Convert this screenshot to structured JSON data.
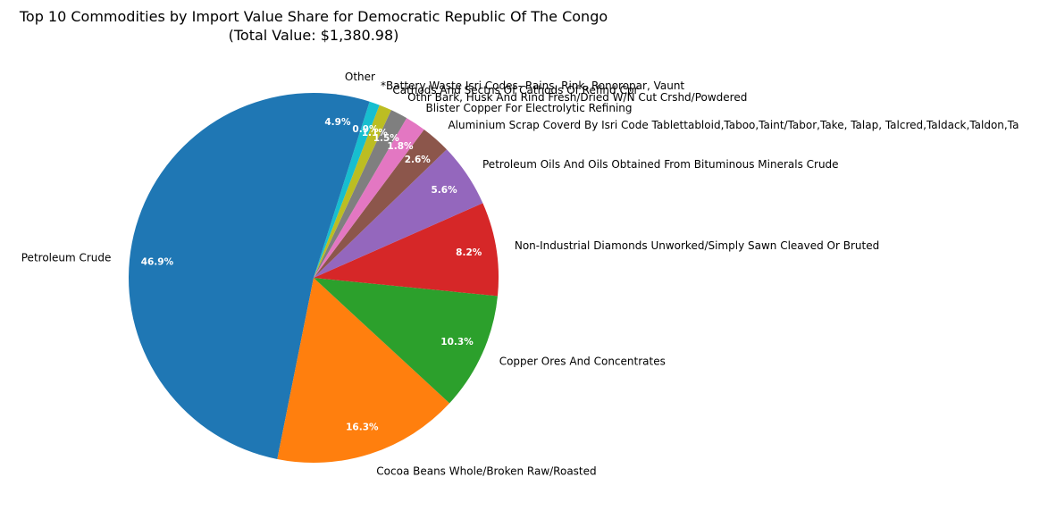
{
  "chart_data": {
    "type": "pie",
    "title": "Top 10 Commodities by Import Value Share for Democratic Republic Of The Congo",
    "subtitle": "(Total Value: $1,380.98)",
    "start_angle_deg": 90,
    "direction": "counterclockwise",
    "legend": "none",
    "slices": [
      {
        "label": "Petroleum Crude",
        "pct": 46.9,
        "pct_label": "46.9%",
        "color": "#1f77b4"
      },
      {
        "label": "Cocoa Beans Whole/Broken Raw/Roasted",
        "pct": 16.3,
        "pct_label": "16.3%",
        "color": "#ff7f0e"
      },
      {
        "label": "Copper Ores And Concentrates",
        "pct": 10.3,
        "pct_label": "10.3%",
        "color": "#2ca02c"
      },
      {
        "label": "Non-Industrial Diamonds Unworked/Simply Sawn Cleaved Or Bruted",
        "pct": 8.2,
        "pct_label": "8.2%",
        "color": "#d62728"
      },
      {
        "label": "Petroleum Oils And Oils Obtained From Bituminous Minerals Crude",
        "pct": 5.6,
        "pct_label": "5.6%",
        "color": "#9467bd"
      },
      {
        "label": "Aluminium Scrap Coverd By Isri Code Tablettabloid,Taboo,Taint/Tabor,Take, Talap, Talcred,Taldack,Taldon,Ta",
        "pct": 2.6,
        "pct_label": "2.6%",
        "color": "#8c564b"
      },
      {
        "label": "Blister Copper For Electrolytic Refining",
        "pct": 1.8,
        "pct_label": "1.8%",
        "color": "#e377c2"
      },
      {
        "label": "Othr Bark, Husk And Rind Fresh/Dried W/N Cut Crshd/Powdered",
        "pct": 1.5,
        "pct_label": "1.5%",
        "color": "#7f7f7f"
      },
      {
        "label": "Cathods And Sectns Of Cathods Of Refind Cpr",
        "pct": 1.1,
        "pct_label": "1.1%",
        "color": "#bcbd22"
      },
      {
        "label": "*Battery Waste Isri Codes- Rains, Rink, Ronoropar, Vaunt",
        "pct": 0.9,
        "pct_label": "0.9%",
        "color": "#17becf"
      },
      {
        "label": "Other",
        "pct": 4.9,
        "pct_label": "4.9%",
        "color": "#1f77b4"
      }
    ]
  }
}
